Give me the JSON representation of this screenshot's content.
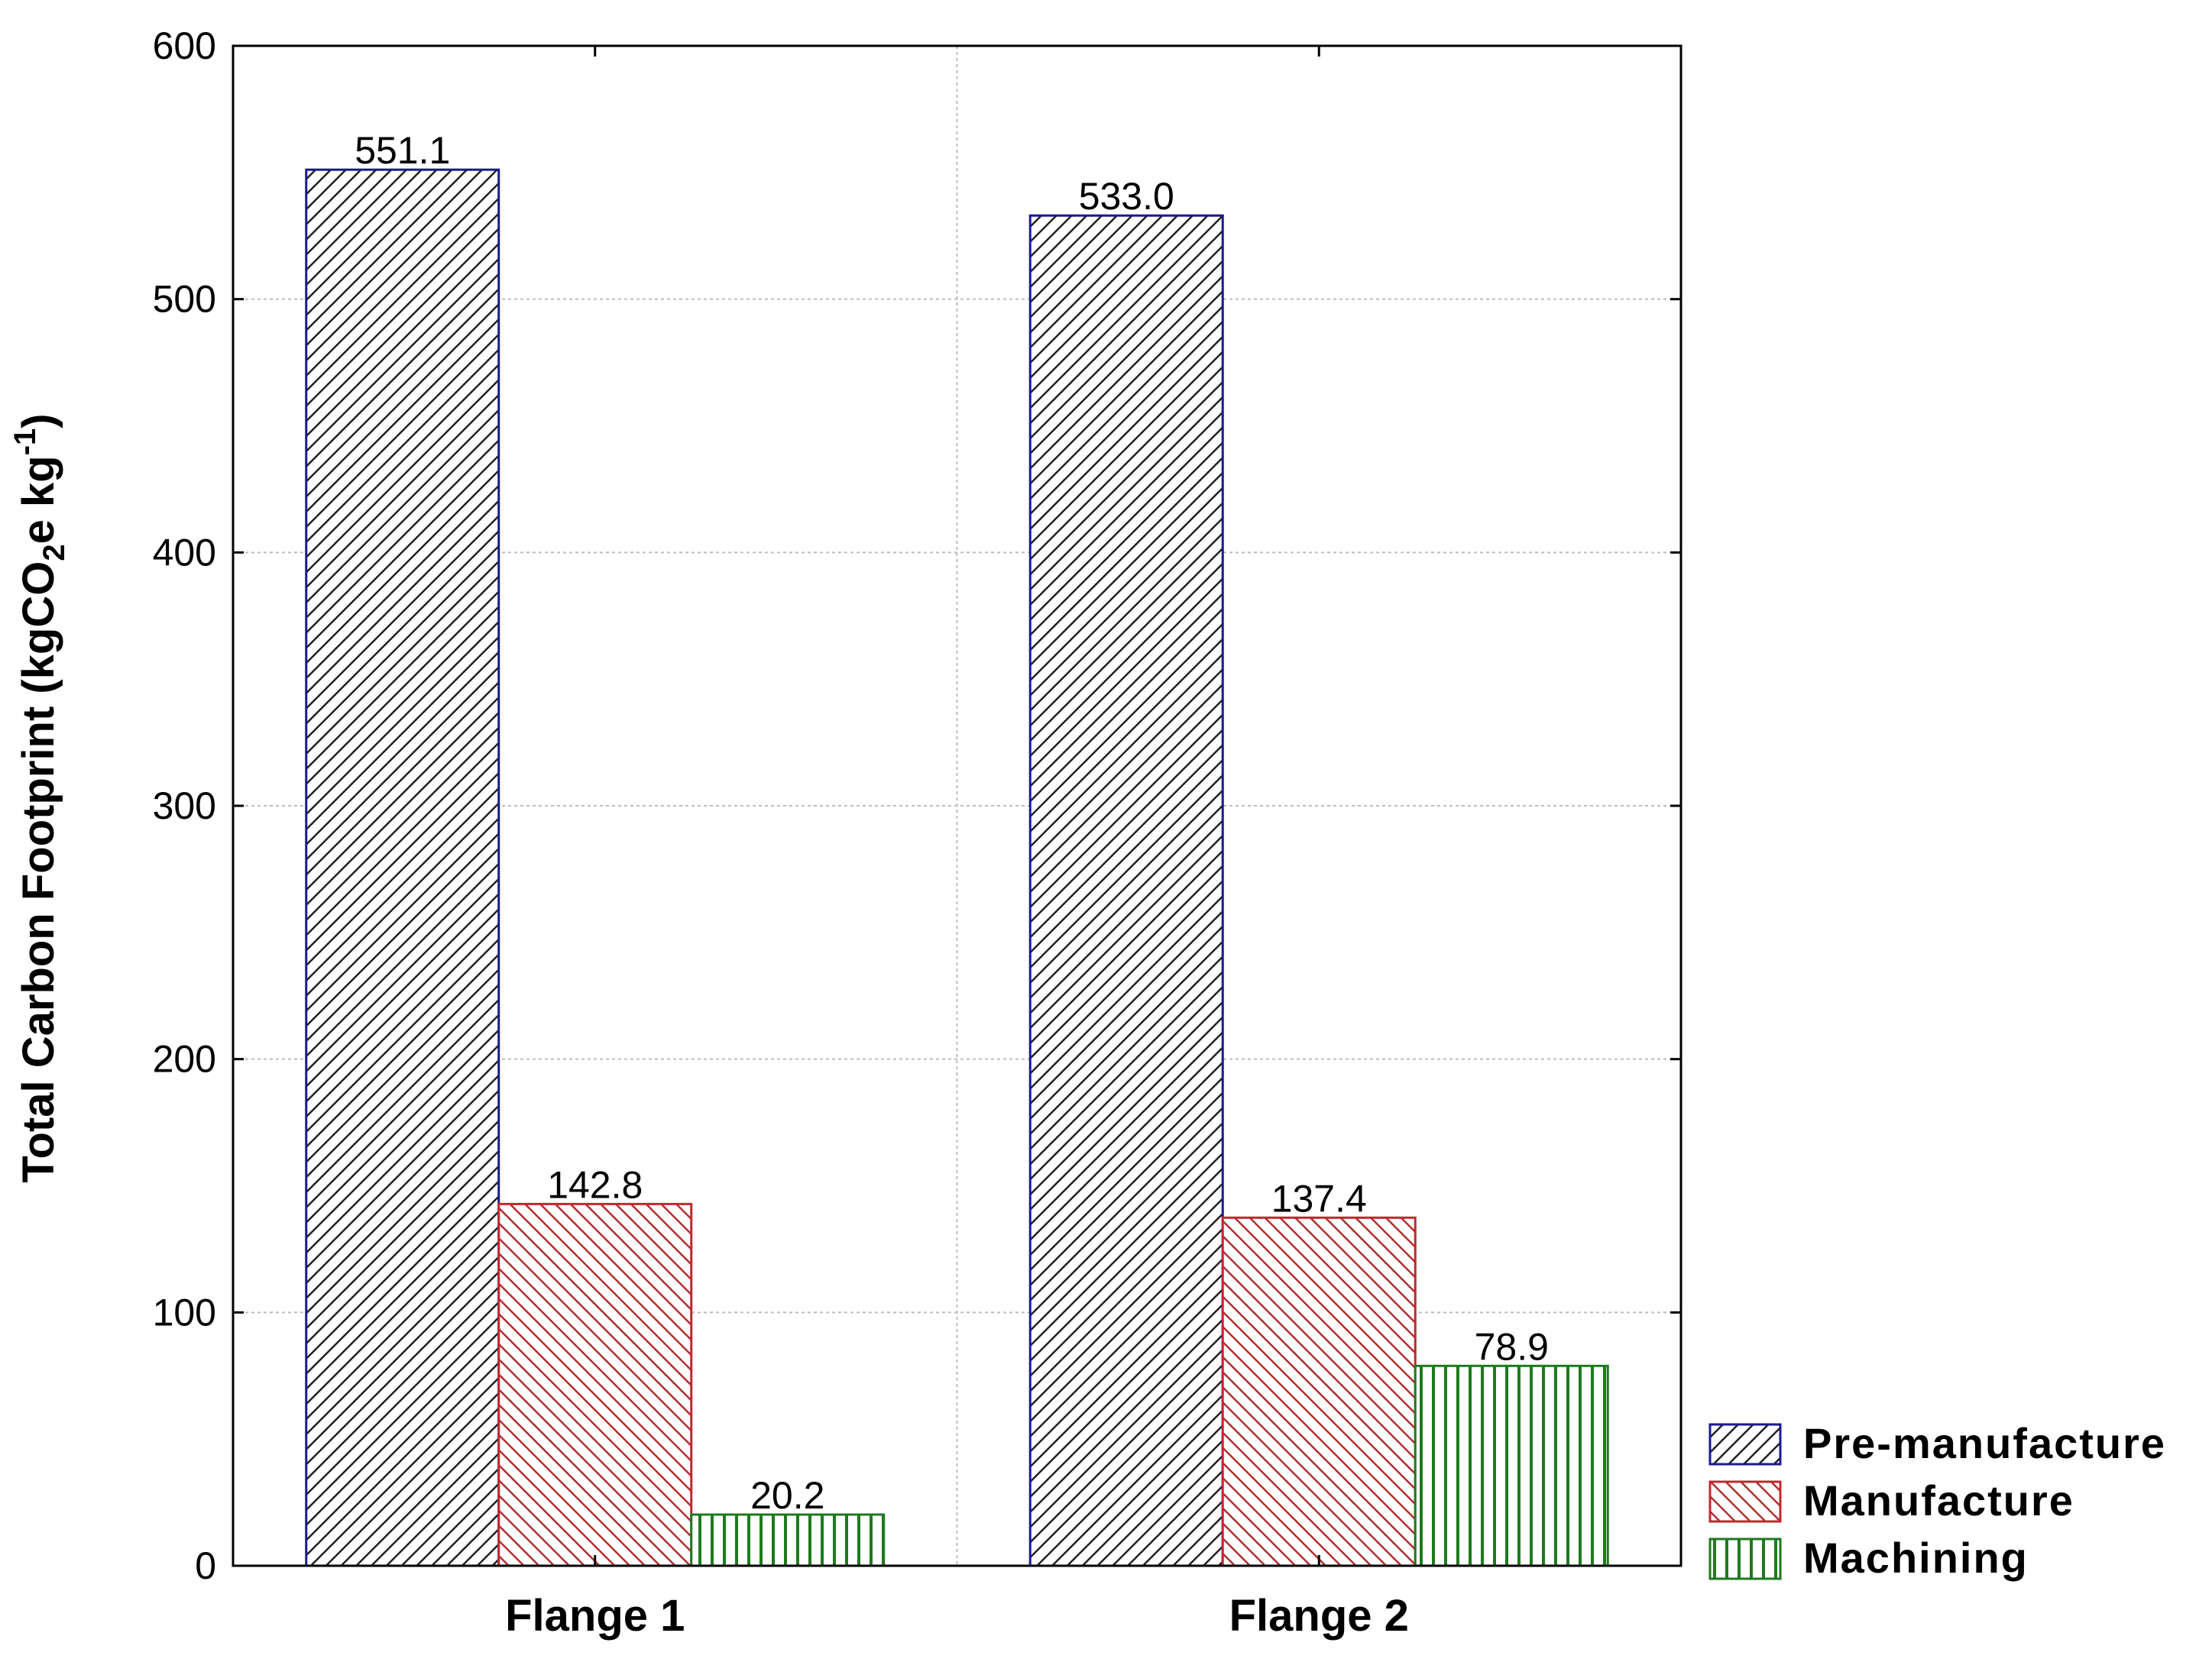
{
  "chart_data": {
    "type": "bar",
    "categories": [
      "Flange 1",
      "Flange 2"
    ],
    "series": [
      {
        "name": "Pre-manufacture",
        "values": [
          551.1,
          533.0
        ],
        "labels": [
          "551.1",
          "533.0"
        ],
        "color": "#1a1a8c",
        "pattern": "diag-up"
      },
      {
        "name": "Manufacture",
        "values": [
          142.8,
          137.4
        ],
        "labels": [
          "142.8",
          "137.4"
        ],
        "color": "#c0282d",
        "pattern": "diag-down"
      },
      {
        "name": "Machining",
        "values": [
          20.2,
          78.9
        ],
        "labels": [
          "20.2",
          "78.9"
        ],
        "color": "#1e7a1e",
        "pattern": "vertical"
      }
    ],
    "ylim": [
      0,
      600
    ],
    "yticks": [
      0,
      100,
      200,
      300,
      400,
      500,
      600
    ],
    "ylabel": {
      "prefix": "Total Carbon Footprint (kgCO",
      "sub": "2",
      "mid": "e kg",
      "sup": "-1",
      "suffix": ")"
    },
    "grid": true,
    "legend_position": "bottom-right"
  }
}
